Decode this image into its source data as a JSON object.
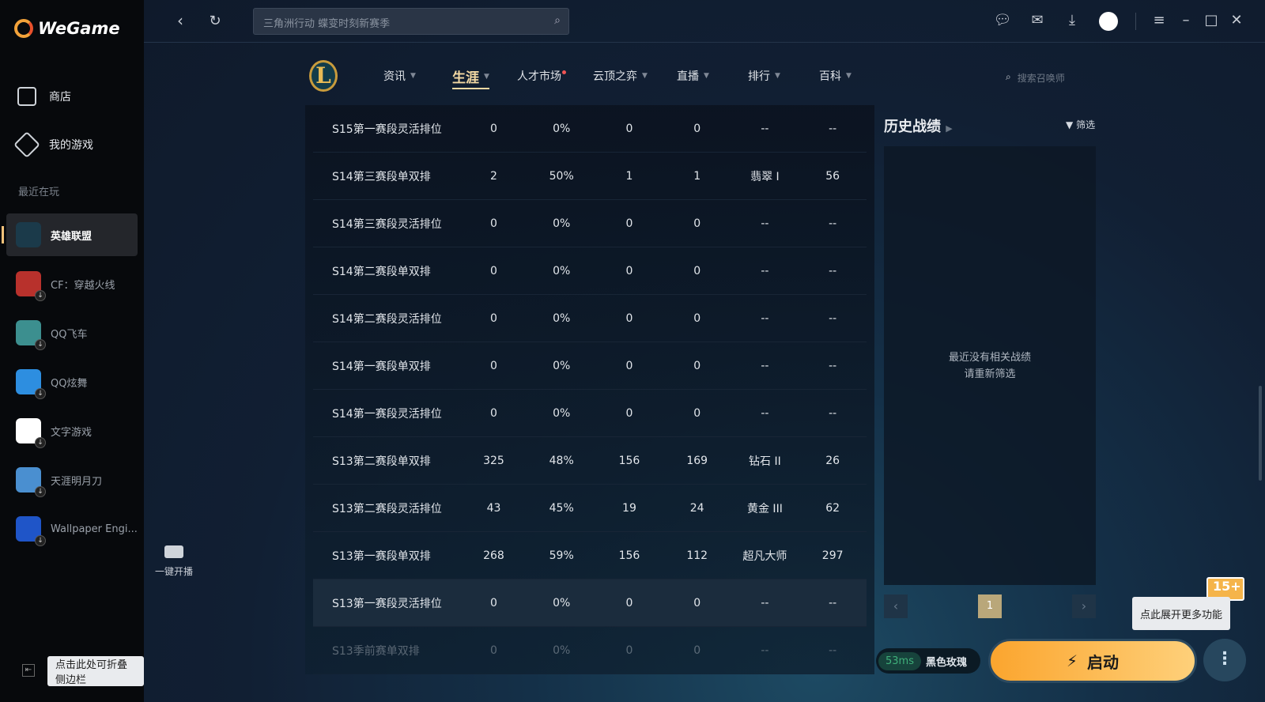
{
  "app": {
    "brand": "WeGame"
  },
  "sidebar": {
    "store": "商店",
    "my_games": "我的游戏",
    "recent_label": "最近在玩",
    "games": [
      {
        "name": "英雄联盟",
        "color": "#1b3a4a",
        "active": true
      },
      {
        "name": "CF：穿越火线",
        "color": "#b8312c"
      },
      {
        "name": "QQ飞车",
        "color": "#3c8f8f"
      },
      {
        "name": "QQ炫舞",
        "color": "#2d8ee0"
      },
      {
        "name": "文字游戏",
        "color": "#ffffff"
      },
      {
        "name": "天涯明月刀",
        "color": "#4a8fd0"
      },
      {
        "name": "Wallpaper Engi...",
        "color": "#1f55c8"
      }
    ],
    "collapse_tip": "点击此处可折叠侧边栏"
  },
  "topbar": {
    "search_placeholder": "三角洲行动 蝶变时刻新赛季",
    "icons": [
      "chat-icon",
      "mail-icon",
      "download-icon",
      "avatar",
      "menu-icon",
      "minimize-icon",
      "maximize-icon",
      "close-icon"
    ]
  },
  "nav": {
    "tabs": [
      {
        "label": "资讯"
      },
      {
        "label": "生涯",
        "active": true
      },
      {
        "label": "人才市场",
        "dot": true
      },
      {
        "label": "云顶之弈"
      },
      {
        "label": "直播"
      },
      {
        "label": "排行"
      },
      {
        "label": "百科"
      }
    ],
    "summoner_search": "搜索召唤师",
    "logo_letter": "L"
  },
  "table": {
    "rows": [
      [
        "S15第一赛段灵活排位",
        "0",
        "0%",
        "0",
        "0",
        "--",
        "--"
      ],
      [
        "S14第三赛段单双排",
        "2",
        "50%",
        "1",
        "1",
        "翡翠 I",
        "56"
      ],
      [
        "S14第三赛段灵活排位",
        "0",
        "0%",
        "0",
        "0",
        "--",
        "--"
      ],
      [
        "S14第二赛段单双排",
        "0",
        "0%",
        "0",
        "0",
        "--",
        "--"
      ],
      [
        "S14第二赛段灵活排位",
        "0",
        "0%",
        "0",
        "0",
        "--",
        "--"
      ],
      [
        "S14第一赛段单双排",
        "0",
        "0%",
        "0",
        "0",
        "--",
        "--"
      ],
      [
        "S14第一赛段灵活排位",
        "0",
        "0%",
        "0",
        "0",
        "--",
        "--"
      ],
      [
        "S13第二赛段单双排",
        "325",
        "48%",
        "156",
        "169",
        "钻石 II",
        "26"
      ],
      [
        "S13第二赛段灵活排位",
        "43",
        "45%",
        "19",
        "24",
        "黄金 III",
        "62"
      ],
      [
        "S13第一赛段单双排",
        "268",
        "59%",
        "156",
        "112",
        "超凡大师",
        "297"
      ],
      [
        "S13第一赛段灵活排位",
        "0",
        "0%",
        "0",
        "0",
        "--",
        "--"
      ],
      [
        "S13季前赛单双排",
        "0",
        "0%",
        "0",
        "0",
        "--",
        "--"
      ]
    ]
  },
  "history": {
    "title": "历史战绩",
    "filter": "筛选",
    "empty_line1": "最近没有相关战绩",
    "empty_line2": "请重新筛选",
    "page": "1"
  },
  "bottom": {
    "ping": "53ms",
    "server": "黑色玫瑰",
    "launch": "启动",
    "more_tip": "点此展开更多功能",
    "age_badge": "15+",
    "live": "一键开播"
  },
  "colors": {
    "accent": "#fba52e",
    "gold": "#f3d9a3"
  }
}
